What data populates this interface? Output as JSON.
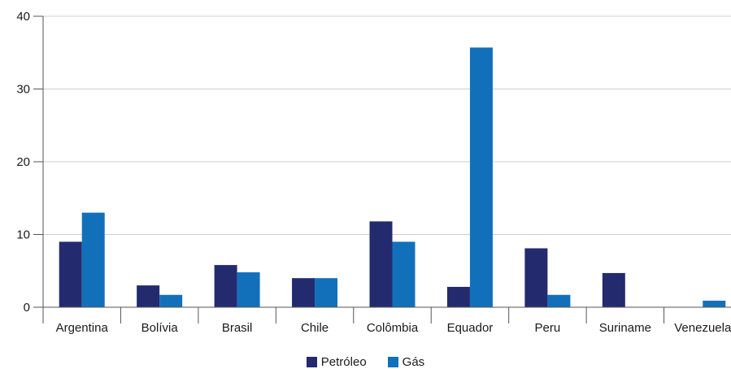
{
  "chart_data": {
    "type": "bar",
    "categories": [
      "Argentina",
      "Bolívia",
      "Brasil",
      "Chile",
      "Colômbia",
      "Equador",
      "Peru",
      "Suriname",
      "Venezuela"
    ],
    "series": [
      {
        "name": "Petróleo",
        "color": "#232b6e",
        "values": [
          9,
          3,
          5.8,
          4,
          11.8,
          2.8,
          8.1,
          4.7,
          0
        ]
      },
      {
        "name": "Gás",
        "color": "#1270bb",
        "values": [
          13,
          1.7,
          4.8,
          4,
          9,
          35.7,
          1.7,
          0,
          0.9
        ]
      }
    ],
    "yticks": [
      0,
      10,
      20,
      30,
      40
    ],
    "ylim": [
      0,
      40
    ],
    "grid": true,
    "legend_position": "bottom-center"
  }
}
